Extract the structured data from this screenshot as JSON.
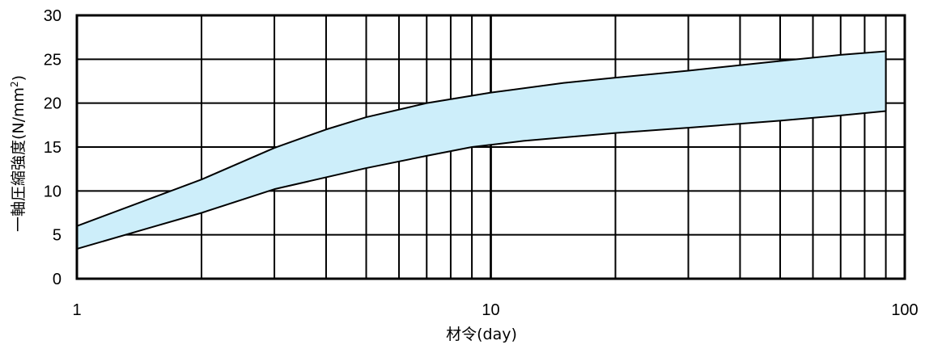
{
  "chart_data": {
    "type": "area",
    "title": "",
    "xlabel": "材令(day)",
    "ylabel_main": "一軸圧縮強度(N/mm",
    "ylabel_sup": "2",
    "ylabel_close": ")",
    "x_scale": "log",
    "xlim": [
      1,
      100
    ],
    "ylim": [
      0,
      30
    ],
    "x_ticks": [
      {
        "value": 1,
        "label": "1"
      },
      {
        "value": 10,
        "label": "10"
      },
      {
        "value": 100,
        "label": "100"
      }
    ],
    "y_ticks": [
      {
        "value": 0,
        "label": "0"
      },
      {
        "value": 5,
        "label": "5"
      },
      {
        "value": 10,
        "label": "10"
      },
      {
        "value": 15,
        "label": "15"
      },
      {
        "value": 20,
        "label": "20"
      },
      {
        "value": 25,
        "label": "25"
      },
      {
        "value": 30,
        "label": "30"
      }
    ],
    "grid": true,
    "band": {
      "fill": "#cdeefa",
      "upper": [
        {
          "x": 1,
          "y": 6.0
        },
        {
          "x": 2,
          "y": 11.3
        },
        {
          "x": 3,
          "y": 14.9
        },
        {
          "x": 4,
          "y": 17.0
        },
        {
          "x": 5,
          "y": 18.4
        },
        {
          "x": 7,
          "y": 20.0
        },
        {
          "x": 10,
          "y": 21.2
        },
        {
          "x": 15,
          "y": 22.3
        },
        {
          "x": 20,
          "y": 22.9
        },
        {
          "x": 30,
          "y": 23.7
        },
        {
          "x": 50,
          "y": 24.8
        },
        {
          "x": 70,
          "y": 25.5
        },
        {
          "x": 90,
          "y": 25.9
        }
      ],
      "lower": [
        {
          "x": 1,
          "y": 3.4
        },
        {
          "x": 1.5,
          "y": 5.8
        },
        {
          "x": 2,
          "y": 7.5
        },
        {
          "x": 3,
          "y": 10.2
        },
        {
          "x": 5,
          "y": 12.6
        },
        {
          "x": 7,
          "y": 14.0
        },
        {
          "x": 9,
          "y": 15.0
        },
        {
          "x": 12,
          "y": 15.7
        },
        {
          "x": 20,
          "y": 16.6
        },
        {
          "x": 30,
          "y": 17.2
        },
        {
          "x": 50,
          "y": 18.0
        },
        {
          "x": 70,
          "y": 18.6
        },
        {
          "x": 90,
          "y": 19.1
        }
      ]
    }
  }
}
